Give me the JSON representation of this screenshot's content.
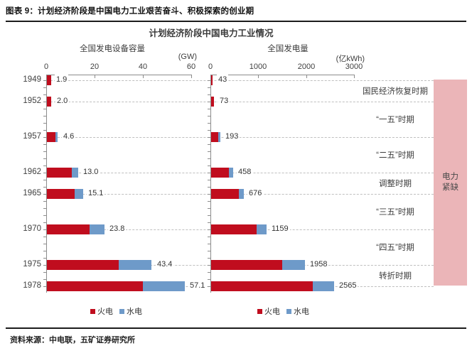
{
  "header": {
    "title": "图表 9：计划经济阶段是中国电力工业艰苦奋斗、积极探索的创业期"
  },
  "chart": {
    "title": "计划经济阶段中国电力工业情况"
  },
  "chart_data": [
    {
      "type": "bar",
      "orientation": "horizontal-stacked",
      "title": "全国发电设备容量",
      "unit": "(GW)",
      "categories": [
        1949,
        1952,
        1957,
        1962,
        1965,
        1970,
        1975,
        1978
      ],
      "series": [
        {
          "name": "火电",
          "color": "#C00D1E",
          "values": [
            1.7,
            1.8,
            3.6,
            10.4,
            11.6,
            17.6,
            29.8,
            39.8
          ]
        },
        {
          "name": "水电",
          "color": "#6E9AC9",
          "values": [
            0.2,
            0.2,
            1.0,
            2.6,
            3.5,
            6.2,
            13.6,
            17.3
          ]
        }
      ],
      "totals": [
        1.9,
        2.0,
        4.6,
        13.0,
        15.1,
        23.8,
        43.4,
        57.1
      ],
      "total_labels": [
        "1.9",
        "2.0",
        "4.6",
        "13.0",
        "15.1",
        "23.8",
        "43.4",
        "57.1"
      ],
      "xlim": [
        0,
        60
      ],
      "xticks": [
        0,
        20,
        40,
        60
      ],
      "grid": "dashed-horizontal",
      "legend_position": "bottom"
    },
    {
      "type": "bar",
      "orientation": "horizontal-stacked",
      "title": "全国发电量",
      "unit": "(亿kWh)",
      "categories": [
        1949,
        1952,
        1957,
        1962,
        1965,
        1970,
        1975,
        1978
      ],
      "series": [
        {
          "name": "火电",
          "color": "#C00D1E",
          "values": [
            36,
            66,
            145,
            368,
            574,
            954,
            1483,
            2119
          ]
        },
        {
          "name": "水电",
          "color": "#6E9AC9",
          "values": [
            7,
            7,
            48,
            90,
            102,
            205,
            475,
            446
          ]
        }
      ],
      "totals": [
        43,
        73,
        193,
        458,
        676,
        1159,
        1958,
        2565
      ],
      "total_labels": [
        "43",
        "73",
        "193",
        "458",
        "676",
        "1159",
        "1958",
        "2565"
      ],
      "xlim": [
        0,
        3000
      ],
      "xticks": [
        0,
        1000,
        2000,
        3000
      ],
      "grid": "dashed-horizontal",
      "legend_position": "bottom"
    }
  ],
  "legend": [
    {
      "label": "火电",
      "color": "#C00D1E"
    },
    {
      "label": "水电",
      "color": "#6E9AC9"
    }
  ],
  "periods": [
    {
      "label": "国民经济恢复时期",
      "from": 1949,
      "to": 1952
    },
    {
      "label": "“一五”时期",
      "from": 1952,
      "to": 1957
    },
    {
      "label": "“二五”时期",
      "from": 1957,
      "to": 1962
    },
    {
      "label": "调整时期",
      "from": 1962,
      "to": 1965
    },
    {
      "label": "“三五”时期",
      "from": 1965,
      "to": 1970
    },
    {
      "label": "“四五”时期",
      "from": 1970,
      "to": 1975
    },
    {
      "label": "转折时期",
      "from": 1975,
      "to": 1978
    }
  ],
  "shortage": {
    "label_lines": [
      "电力",
      "紧缺"
    ],
    "color": "#EBB5B8",
    "from": 1949,
    "to": 1978
  },
  "footer": {
    "source": "资料来源：中电联，五矿证券研究所"
  }
}
